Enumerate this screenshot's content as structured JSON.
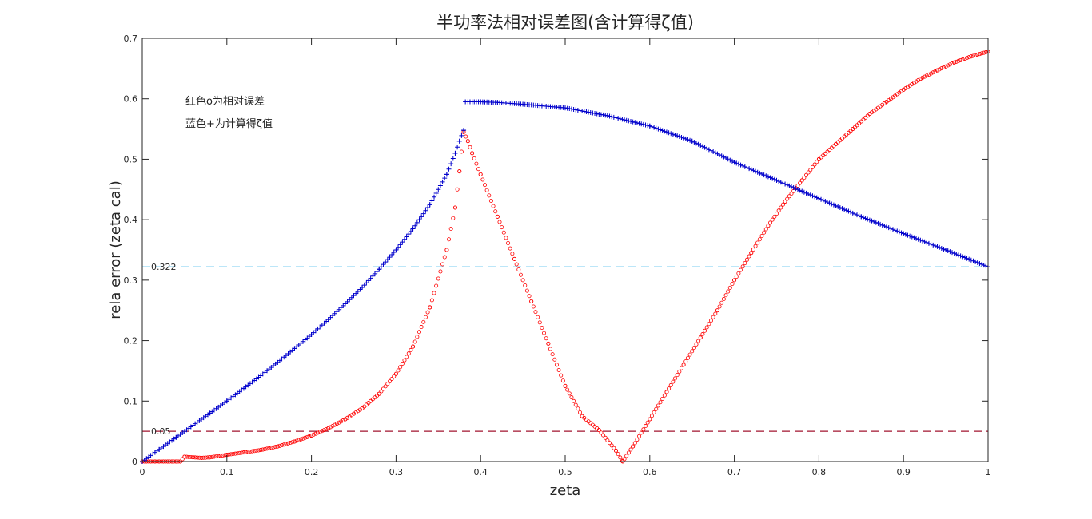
{
  "chart_data": {
    "type": "scatter",
    "title": "半功率法相对误差图(含计算得ζ值)",
    "xlabel": "zeta",
    "ylabel": "rela error (zeta cal)",
    "xlim": [
      0,
      1
    ],
    "ylim": [
      0,
      0.7
    ],
    "xticks": [
      0,
      0.1,
      0.2,
      0.3,
      0.4,
      0.5,
      0.6,
      0.7,
      0.8,
      0.9,
      1
    ],
    "yticks": [
      0,
      0.1,
      0.2,
      0.3,
      0.4,
      0.5,
      0.6,
      0.7
    ],
    "grid": false,
    "annotations": [
      "红色o为相对误差",
      "蓝色+为计算得ζ值"
    ],
    "reference_lines": [
      {
        "label": "0.322",
        "y": 0.322,
        "color": "#4DBEEE",
        "style": "dashed"
      },
      {
        "label": "0.05",
        "y": 0.05,
        "color": "#A2142F",
        "style": "dashed"
      }
    ],
    "series": [
      {
        "marker": "circle",
        "color": "#FF0000",
        "x": [
          0,
          0.005,
          0.01,
          0.015,
          0.02,
          0.025,
          0.03,
          0.035,
          0.04,
          0.045,
          0.05,
          0.06,
          0.07,
          0.08,
          0.09,
          0.1,
          0.12,
          0.14,
          0.16,
          0.18,
          0.2,
          0.22,
          0.24,
          0.26,
          0.28,
          0.3,
          0.32,
          0.34,
          0.36,
          0.37,
          0.375,
          0.38,
          0.385,
          0.39,
          0.4,
          0.42,
          0.44,
          0.46,
          0.48,
          0.5,
          0.52,
          0.54,
          0.56,
          0.568,
          0.58,
          0.6,
          0.62,
          0.64,
          0.66,
          0.68,
          0.7,
          0.72,
          0.74,
          0.76,
          0.78,
          0.8,
          0.82,
          0.84,
          0.86,
          0.88,
          0.9,
          0.92,
          0.94,
          0.96,
          0.98,
          1
        ],
        "y": [
          0,
          0,
          0,
          0,
          0,
          0,
          0,
          0,
          0,
          0,
          0.008,
          0.007,
          0.006,
          0.007,
          0.009,
          0.011,
          0.015,
          0.019,
          0.025,
          0.033,
          0.043,
          0.055,
          0.07,
          0.088,
          0.112,
          0.145,
          0.19,
          0.255,
          0.35,
          0.42,
          0.48,
          0.545,
          0.53,
          0.51,
          0.475,
          0.405,
          0.335,
          0.265,
          0.195,
          0.125,
          0.075,
          0.052,
          0.018,
          0,
          0.025,
          0.07,
          0.115,
          0.16,
          0.205,
          0.25,
          0.3,
          0.345,
          0.39,
          0.43,
          0.465,
          0.5,
          0.525,
          0.55,
          0.575,
          0.595,
          0.615,
          0.633,
          0.647,
          0.66,
          0.67,
          0.678
        ]
      },
      {
        "marker": "plus",
        "color": "#0000CC",
        "x": [
          0,
          0.02,
          0.04,
          0.06,
          0.08,
          0.1,
          0.12,
          0.14,
          0.16,
          0.18,
          0.2,
          0.22,
          0.24,
          0.26,
          0.28,
          0.3,
          0.32,
          0.34,
          0.36,
          0.37,
          0.375,
          0.38,
          0.382,
          0.39,
          0.4,
          0.42,
          0.45,
          0.5,
          0.55,
          0.6,
          0.65,
          0.7,
          0.75,
          0.8,
          0.85,
          0.9,
          0.95,
          1
        ],
        "y": [
          0,
          0.02,
          0.04,
          0.06,
          0.08,
          0.1,
          0.121,
          0.142,
          0.164,
          0.187,
          0.21,
          0.235,
          0.261,
          0.288,
          0.318,
          0.35,
          0.385,
          0.425,
          0.475,
          0.51,
          0.53,
          0.548,
          0.595,
          0.595,
          0.595,
          0.594,
          0.591,
          0.585,
          0.572,
          0.555,
          0.53,
          0.495,
          0.465,
          0.435,
          0.405,
          0.377,
          0.35,
          0.322
        ]
      }
    ]
  }
}
